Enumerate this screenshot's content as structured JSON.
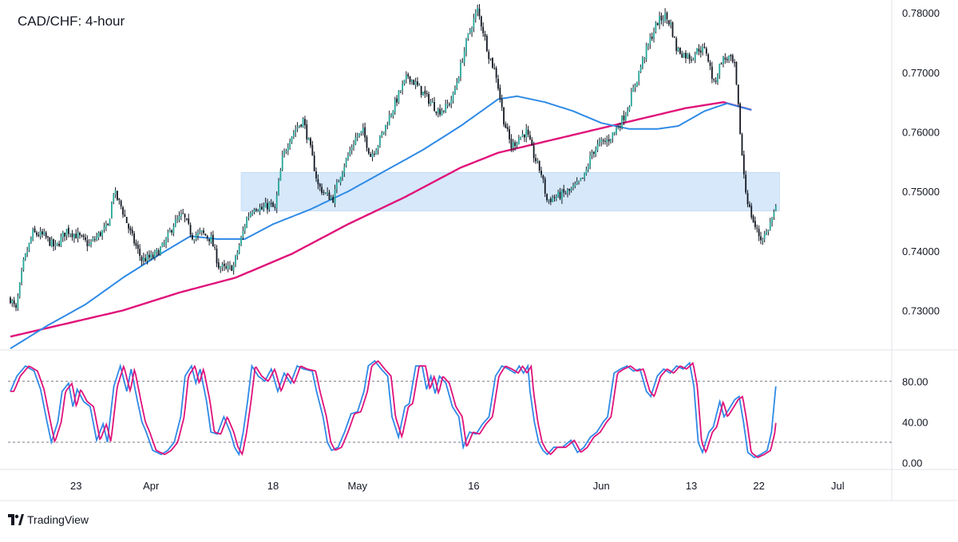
{
  "chart": {
    "title": "CAD/CHF: 4-hour",
    "brand": "TradingView"
  },
  "colors": {
    "up": "#26a69a",
    "down": "#131722",
    "candle_wick": "#131722",
    "ma_fast": "#2f8ae6",
    "ma_slow": "#e0127a",
    "zone": "#d6e8fa",
    "stoch_k": "#2f8ae6",
    "stoch_d": "#e0127a",
    "grid_line": "#e0e3eb",
    "axis_text": "#131722"
  },
  "chart_data": [
    {
      "type": "candlestick",
      "name": "price",
      "title": "CAD/CHF: 4-hour",
      "ylim": [
        0.7235,
        0.7815
      ],
      "y_ticks": [
        0.73,
        0.74,
        0.75,
        0.76,
        0.77,
        0.78
      ],
      "y_tick_labels": [
        "0.73000",
        "0.74000",
        "0.75000",
        "0.76000",
        "0.77000",
        "0.78000"
      ],
      "x_ticks": [
        {
          "label": "23",
          "t": 35
        },
        {
          "label": "Apr",
          "t": 75
        },
        {
          "label": "18",
          "t": 140
        },
        {
          "label": "May",
          "t": 185
        },
        {
          "label": "16",
          "t": 247
        },
        {
          "label": "Jun",
          "t": 315
        },
        {
          "label": "13",
          "t": 363
        },
        {
          "label": "22",
          "t": 399
        },
        {
          "label": "Jul",
          "t": 441
        }
      ],
      "x_range": [
        0,
        458
      ],
      "close_anchors": [
        [
          0,
          0.732
        ],
        [
          3,
          0.73
        ],
        [
          7,
          0.738
        ],
        [
          12,
          0.743
        ],
        [
          18,
          0.7425
        ],
        [
          24,
          0.7405
        ],
        [
          30,
          0.7435
        ],
        [
          36,
          0.7425
        ],
        [
          42,
          0.741
        ],
        [
          48,
          0.743
        ],
        [
          52,
          0.744
        ],
        [
          55,
          0.75
        ],
        [
          59,
          0.7475
        ],
        [
          64,
          0.743
        ],
        [
          70,
          0.7385
        ],
        [
          76,
          0.739
        ],
        [
          82,
          0.741
        ],
        [
          87,
          0.7445
        ],
        [
          92,
          0.746
        ],
        [
          97,
          0.7425
        ],
        [
          102,
          0.743
        ],
        [
          107,
          0.742
        ],
        [
          111,
          0.7375
        ],
        [
          115,
          0.7368
        ],
        [
          119,
          0.7375
        ],
        [
          123,
          0.742
        ],
        [
          126,
          0.7455
        ],
        [
          130,
          0.7475
        ],
        [
          134,
          0.747
        ],
        [
          138,
          0.7478
        ],
        [
          141,
          0.747
        ],
        [
          145,
          0.7555
        ],
        [
          149,
          0.759
        ],
        [
          152,
          0.7605
        ],
        [
          156,
          0.762
        ],
        [
          160,
          0.757
        ],
        [
          164,
          0.751
        ],
        [
          168,
          0.7495
        ],
        [
          172,
          0.7488
        ],
        [
          176,
          0.753
        ],
        [
          180,
          0.756
        ],
        [
          184,
          0.759
        ],
        [
          188,
          0.76
        ],
        [
          192,
          0.756
        ],
        [
          196,
          0.758
        ],
        [
          200,
          0.761
        ],
        [
          204,
          0.764
        ],
        [
          208,
          0.767
        ],
        [
          212,
          0.7695
        ],
        [
          216,
          0.768
        ],
        [
          220,
          0.7665
        ],
        [
          224,
          0.765
        ],
        [
          228,
          0.7635
        ],
        [
          232,
          0.764
        ],
        [
          236,
          0.766
        ],
        [
          240,
          0.771
        ],
        [
          243,
          0.775
        ],
        [
          246,
          0.778
        ],
        [
          249,
          0.7805
        ],
        [
          252,
          0.777
        ],
        [
          255,
          0.773
        ],
        [
          259,
          0.7695
        ],
        [
          263,
          0.762
        ],
        [
          267,
          0.7575
        ],
        [
          271,
          0.759
        ],
        [
          275,
          0.76
        ],
        [
          279,
          0.756
        ],
        [
          283,
          0.753
        ],
        [
          286,
          0.7485
        ],
        [
          290,
          0.749
        ],
        [
          294,
          0.7495
        ],
        [
          298,
          0.75
        ],
        [
          302,
          0.751
        ],
        [
          306,
          0.7525
        ],
        [
          310,
          0.7565
        ],
        [
          314,
          0.758
        ],
        [
          318,
          0.7585
        ],
        [
          322,
          0.76
        ],
        [
          326,
          0.762
        ],
        [
          329,
          0.764
        ],
        [
          333,
          0.768
        ],
        [
          337,
          0.772
        ],
        [
          341,
          0.7755
        ],
        [
          345,
          0.7785
        ],
        [
          349,
          0.7795
        ],
        [
          352,
          0.778
        ],
        [
          355,
          0.774
        ],
        [
          359,
          0.773
        ],
        [
          363,
          0.7725
        ],
        [
          367,
          0.774
        ],
        [
          371,
          0.7735
        ],
        [
          375,
          0.768
        ],
        [
          379,
          0.772
        ],
        [
          383,
          0.7725
        ],
        [
          386,
          0.771
        ],
        [
          388,
          0.764
        ],
        [
          390,
          0.756
        ],
        [
          392,
          0.75
        ],
        [
          394,
          0.747
        ],
        [
          397,
          0.744
        ],
        [
          400,
          0.742
        ],
        [
          403,
          0.743
        ],
        [
          406,
          0.7455
        ],
        [
          408,
          0.747
        ]
      ],
      "volatility": 0.00095,
      "ma_fast_points": [
        [
          0,
          0.7236
        ],
        [
          20,
          0.7275
        ],
        [
          40,
          0.731
        ],
        [
          60,
          0.7355
        ],
        [
          80,
          0.7395
        ],
        [
          96,
          0.7425
        ],
        [
          110,
          0.742
        ],
        [
          125,
          0.742
        ],
        [
          140,
          0.7445
        ],
        [
          160,
          0.747
        ],
        [
          180,
          0.75
        ],
        [
          200,
          0.7535
        ],
        [
          220,
          0.757
        ],
        [
          240,
          0.761
        ],
        [
          260,
          0.7655
        ],
        [
          270,
          0.766
        ],
        [
          285,
          0.765
        ],
        [
          300,
          0.7635
        ],
        [
          315,
          0.7615
        ],
        [
          330,
          0.7605
        ],
        [
          345,
          0.7605
        ],
        [
          356,
          0.761
        ],
        [
          370,
          0.7635
        ],
        [
          382,
          0.7648
        ],
        [
          395,
          0.7637
        ]
      ],
      "ma_slow_points": [
        [
          0,
          0.7256
        ],
        [
          30,
          0.7278
        ],
        [
          60,
          0.73
        ],
        [
          90,
          0.733
        ],
        [
          120,
          0.7355
        ],
        [
          150,
          0.7395
        ],
        [
          180,
          0.7445
        ],
        [
          210,
          0.749
        ],
        [
          240,
          0.754
        ],
        [
          260,
          0.7565
        ],
        [
          280,
          0.758
        ],
        [
          300,
          0.7595
        ],
        [
          320,
          0.761
        ],
        [
          340,
          0.7625
        ],
        [
          360,
          0.764
        ],
        [
          380,
          0.765
        ],
        [
          395,
          0.7637
        ]
      ],
      "zone": {
        "t_start": 123,
        "t_end": 410,
        "low": 0.7467,
        "high": 0.7532
      }
    },
    {
      "type": "line",
      "name": "stochastic",
      "ylim": [
        -6,
        110
      ],
      "y_ticks": [
        0,
        40,
        80
      ],
      "y_tick_labels": [
        "0.00",
        "40.00",
        "80.00"
      ],
      "levels": [
        80,
        20
      ],
      "k_anchors": [
        [
          0,
          70
        ],
        [
          3,
          85
        ],
        [
          7,
          95
        ],
        [
          11,
          90
        ],
        [
          14,
          72
        ],
        [
          17,
          40
        ],
        [
          19,
          20
        ],
        [
          22,
          40
        ],
        [
          24,
          70
        ],
        [
          27,
          78
        ],
        [
          29,
          55
        ],
        [
          31,
          72
        ],
        [
          34,
          60
        ],
        [
          37,
          55
        ],
        [
          40,
          22
        ],
        [
          43,
          38
        ],
        [
          45,
          20
        ],
        [
          48,
          75
        ],
        [
          51,
          95
        ],
        [
          54,
          70
        ],
        [
          56,
          92
        ],
        [
          59,
          60
        ],
        [
          61,
          40
        ],
        [
          63,
          30
        ],
        [
          66,
          12
        ],
        [
          70,
          8
        ],
        [
          73,
          12
        ],
        [
          76,
          20
        ],
        [
          79,
          45
        ],
        [
          81,
          85
        ],
        [
          84,
          95
        ],
        [
          86,
          78
        ],
        [
          88,
          92
        ],
        [
          91,
          60
        ],
        [
          93,
          30
        ],
        [
          96,
          28
        ],
        [
          99,
          45
        ],
        [
          102,
          30
        ],
        [
          104,
          15
        ],
        [
          106,
          8
        ],
        [
          108,
          30
        ],
        [
          110,
          60
        ],
        [
          112,
          95
        ],
        [
          115,
          85
        ],
        [
          118,
          80
        ],
        [
          121,
          92
        ],
        [
          124,
          70
        ],
        [
          127,
          88
        ],
        [
          130,
          78
        ],
        [
          133,
          95
        ],
        [
          136,
          92
        ],
        [
          140,
          90
        ],
        [
          142,
          70
        ],
        [
          145,
          45
        ],
        [
          147,
          20
        ],
        [
          149,
          12
        ],
        [
          152,
          15
        ],
        [
          155,
          30
        ],
        [
          158,
          48
        ],
        [
          161,
          50
        ],
        [
          164,
          70
        ],
        [
          166,
          95
        ],
        [
          169,
          100
        ],
        [
          172,
          92
        ],
        [
          175,
          85
        ],
        [
          177,
          45
        ],
        [
          180,
          25
        ],
        [
          183,
          55
        ],
        [
          185,
          58
        ],
        [
          188,
          95
        ],
        [
          191,
          95
        ],
        [
          193,
          72
        ],
        [
          195,
          85
        ],
        [
          197,
          68
        ],
        [
          199,
          85
        ],
        [
          202,
          78
        ],
        [
          205,
          55
        ],
        [
          208,
          45
        ],
        [
          210,
          15
        ],
        [
          213,
          30
        ],
        [
          216,
          28
        ],
        [
          219,
          38
        ],
        [
          222,
          45
        ],
        [
          225,
          85
        ],
        [
          228,
          95
        ],
        [
          231,
          92
        ],
        [
          234,
          88
        ],
        [
          236,
          95
        ],
        [
          238,
          88
        ],
        [
          240,
          95
        ],
        [
          241,
          70
        ],
        [
          243,
          40
        ],
        [
          245,
          20
        ],
        [
          247,
          12
        ],
        [
          249,
          8
        ],
        [
          252,
          15
        ],
        [
          256,
          15
        ],
        [
          260,
          22
        ],
        [
          263,
          10
        ],
        [
          266,
          15
        ],
        [
          269,
          25
        ],
        [
          272,
          30
        ],
        [
          275,
          40
        ],
        [
          277,
          45
        ],
        [
          280,
          88
        ],
        [
          283,
          92
        ],
        [
          286,
          95
        ],
        [
          289,
          90
        ],
        [
          292,
          92
        ],
        [
          295,
          70
        ],
        [
          297,
          65
        ],
        [
          300,
          85
        ],
        [
          303,
          92
        ],
        [
          306,
          88
        ],
        [
          309,
          95
        ],
        [
          312,
          92
        ],
        [
          315,
          98
        ],
        [
          317,
          75
        ],
        [
          319,
          20
        ],
        [
          321,
          10
        ],
        [
          324,
          30
        ],
        [
          326,
          35
        ],
        [
          329,
          60
        ],
        [
          331,
          45
        ],
        [
          334,
          55
        ],
        [
          336,
          62
        ],
        [
          338,
          65
        ],
        [
          340,
          40
        ],
        [
          342,
          10
        ],
        [
          345,
          5
        ],
        [
          348,
          8
        ],
        [
          351,
          12
        ],
        [
          353,
          30
        ],
        [
          355,
          75
        ]
      ],
      "k_t_offset": 53,
      "d_lag": 1.6
    }
  ]
}
